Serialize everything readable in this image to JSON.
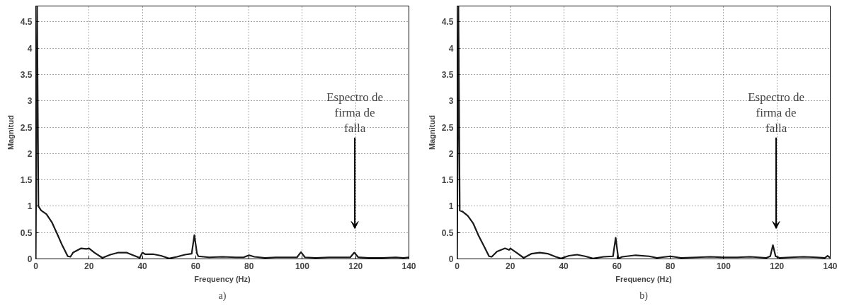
{
  "chart_data": [
    {
      "type": "line",
      "xlabel": "Frequency (Hz)",
      "ylabel": "Magnitud",
      "xlim": [
        0,
        140
      ],
      "ylim": [
        0,
        4.8
      ],
      "xticks": [
        0,
        20,
        40,
        60,
        80,
        100,
        120,
        140
      ],
      "yticks": [
        0,
        0.5,
        1,
        1.5,
        2,
        2.5,
        3,
        3.5,
        4,
        4.5
      ],
      "grid": true,
      "line_style": "solid",
      "color": "#1a1a1a",
      "x": [
        0,
        0.5,
        1,
        2,
        4,
        6,
        8,
        10,
        12,
        13,
        14,
        17,
        19,
        20,
        22,
        25,
        28,
        31,
        34,
        37,
        39,
        40,
        41,
        44,
        47,
        50,
        53,
        56,
        58.5,
        59.5,
        60.5,
        61,
        65,
        70,
        75,
        78,
        80,
        82,
        86,
        90,
        95,
        98,
        99.5,
        101,
        105,
        110,
        118,
        119.5,
        121,
        125,
        130,
        135,
        138,
        140
      ],
      "values": [
        0,
        4.8,
        1.0,
        0.92,
        0.85,
        0.7,
        0.48,
        0.25,
        0.05,
        0.04,
        0.12,
        0.2,
        0.19,
        0.2,
        0.12,
        0.02,
        0.08,
        0.12,
        0.12,
        0.06,
        0.02,
        0.12,
        0.09,
        0.09,
        0.06,
        0.01,
        0.04,
        0.08,
        0.1,
        0.45,
        0.1,
        0.05,
        0.03,
        0.04,
        0.03,
        0.03,
        0.07,
        0.04,
        0.02,
        0.03,
        0.03,
        0.03,
        0.13,
        0.03,
        0.02,
        0.03,
        0.03,
        0.12,
        0.03,
        0.02,
        0.02,
        0.03,
        0.02,
        0.03
      ],
      "annotations": [
        "Espectro de\nfirma de\nfalla",
        "a)"
      ]
    },
    {
      "type": "line",
      "xlabel": "Frequency (Hz)",
      "ylabel": "Magnitud",
      "xlim": [
        0,
        140
      ],
      "ylim": [
        0,
        4.8
      ],
      "xticks": [
        0,
        20,
        40,
        60,
        80,
        100,
        120,
        140
      ],
      "yticks": [
        0,
        0.5,
        1,
        1.5,
        2,
        2.5,
        3,
        3.5,
        4,
        4.5
      ],
      "grid": true,
      "line_style": "solid",
      "color": "#1a1a1a",
      "x": [
        0,
        0.5,
        1,
        2,
        4,
        6,
        8,
        10,
        12,
        13,
        15,
        17,
        18,
        19.5,
        20,
        22,
        25,
        28,
        31,
        34,
        37,
        39,
        42,
        45,
        48,
        51,
        55,
        58.5,
        59.5,
        60.5,
        62,
        67,
        72,
        75,
        80,
        84,
        90,
        95,
        100,
        105,
        110,
        116,
        117.5,
        118.5,
        119.5,
        121,
        125,
        130,
        135,
        138,
        139,
        140
      ],
      "values": [
        0,
        4.8,
        0.92,
        0.9,
        0.82,
        0.68,
        0.45,
        0.25,
        0.05,
        0.04,
        0.14,
        0.18,
        0.2,
        0.17,
        0.2,
        0.13,
        0.02,
        0.1,
        0.12,
        0.1,
        0.04,
        0.01,
        0.06,
        0.08,
        0.05,
        0.01,
        0.04,
        0.05,
        0.4,
        0.01,
        0.04,
        0.07,
        0.05,
        0.02,
        0.05,
        0.02,
        0.03,
        0.04,
        0.03,
        0.03,
        0.04,
        0.02,
        0.05,
        0.26,
        0.05,
        0.02,
        0.03,
        0.04,
        0.03,
        0.02,
        0.06,
        0.02
      ],
      "annotations": [
        "Espectro de\nfirma de\nfalla",
        "b)"
      ]
    }
  ]
}
